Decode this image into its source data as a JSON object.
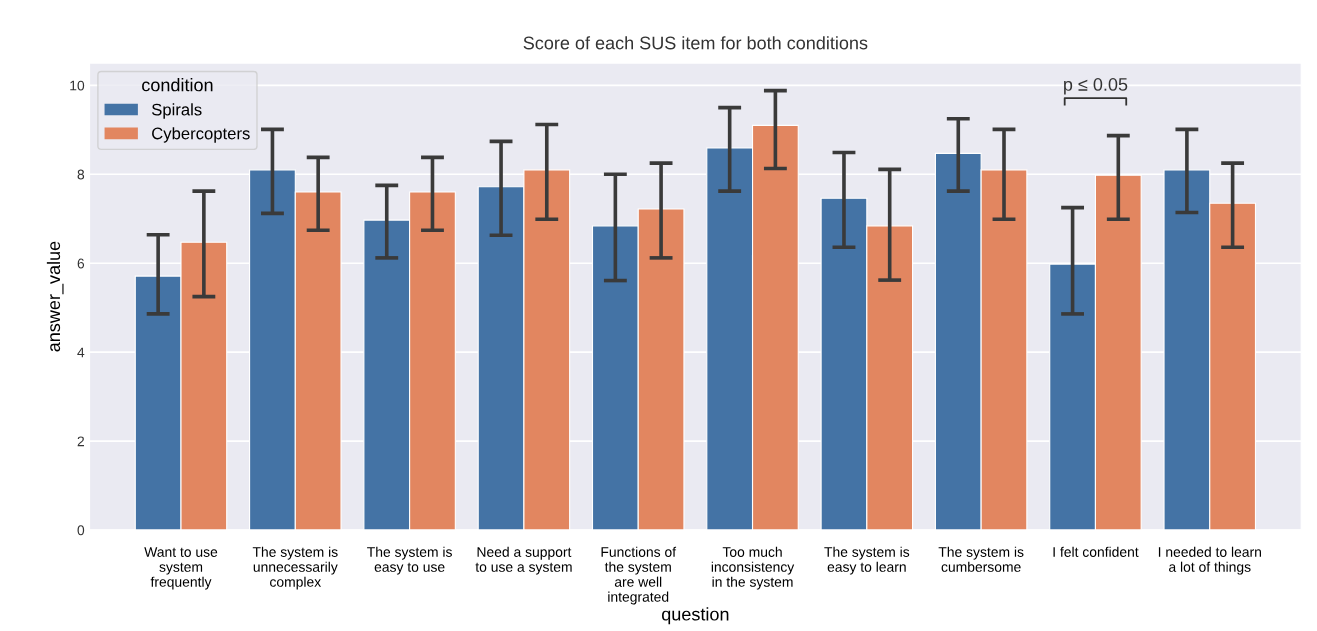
{
  "chart_data": {
    "type": "bar",
    "title": "Score of each SUS item for both conditions",
    "xlabel": "question",
    "ylabel": "answer_value",
    "legend_title": "condition",
    "categories": [
      "Want to use\nsystem\nfrequently",
      "The system is\nunnecessarily\ncomplex",
      "The system is\neasy to use",
      "Need a support\nto use a system",
      "Functions of\nthe system\nare well\nintegrated",
      "Too much\ninconsistency\nin the system",
      "The system is\neasy to learn",
      "The system is\ncumbersome",
      "I felt confident",
      "I needed to learn\na lot of things"
    ],
    "series": [
      {
        "name": "Spirals",
        "color": "#4473a5",
        "values": [
          5.71,
          8.1,
          6.97,
          7.72,
          6.84,
          8.59,
          7.46,
          8.47,
          5.98,
          8.1
        ],
        "errors": [
          [
            4.86,
            6.64
          ],
          [
            7.12,
            9.01
          ],
          [
            6.12,
            7.75
          ],
          [
            6.63,
            8.74
          ],
          [
            5.61,
            8.0
          ],
          [
            7.62,
            9.5
          ],
          [
            6.36,
            8.49
          ],
          [
            7.62,
            9.25
          ],
          [
            4.86,
            7.25
          ],
          [
            7.14,
            9.01
          ]
        ]
      },
      {
        "name": "Cybercopters",
        "color": "#e28660",
        "values": [
          6.47,
          7.6,
          7.6,
          8.1,
          7.22,
          9.1,
          6.84,
          8.1,
          7.98,
          7.35
        ],
        "errors": [
          [
            5.25,
            7.62
          ],
          [
            6.74,
            8.38
          ],
          [
            6.74,
            8.38
          ],
          [
            6.99,
            9.12
          ],
          [
            6.12,
            8.25
          ],
          [
            8.13,
            9.88
          ],
          [
            5.62,
            8.11
          ],
          [
            6.99,
            9.01
          ],
          [
            6.99,
            8.87
          ],
          [
            6.36,
            8.25
          ]
        ]
      }
    ],
    "annotations": [
      "p ≤ 0.05"
    ],
    "ylim": [
      0,
      10.5
    ],
    "yticks": [
      0,
      2,
      4,
      6,
      8,
      10
    ],
    "grid": "y",
    "legend": "top left"
  }
}
